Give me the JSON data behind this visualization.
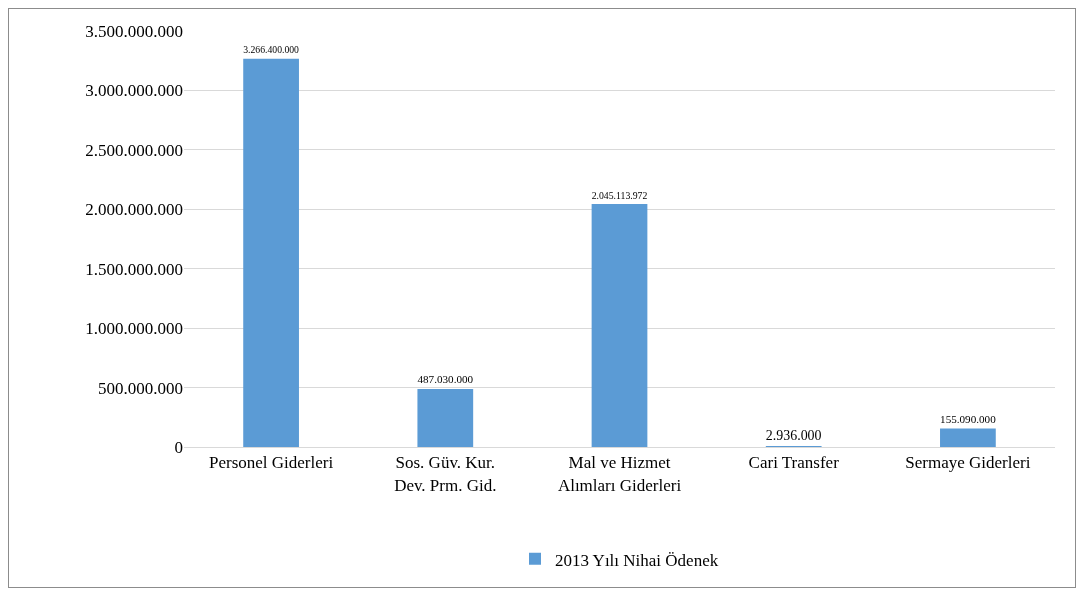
{
  "chart_data": {
    "type": "bar",
    "categories": [
      "Personel Giderleri",
      "Sos. Güv. Kur. Dev. Prm. Gid.",
      "Mal ve Hizmet Alımları Giderleri",
      "Cari Transfer",
      "Sermaye Giderleri"
    ],
    "series": [
      {
        "name": "2013 Yılı Nihai Ödenek",
        "color": "#5b9bd5",
        "values": [
          3266400000,
          487030000,
          2045113972,
          2936000,
          155090000
        ],
        "value_labels": [
          "3.266.400.000",
          "487.030.000",
          "2.045.113.972",
          "2.936.000",
          "155.090.000"
        ]
      }
    ],
    "ylim": [
      0,
      3500000000
    ],
    "yticks": [
      0,
      {
        "value": 500000000,
        "label": "500.000.000"
      },
      {
        "value": 1000000000,
        "label": "1.000.000.000"
      },
      {
        "value": 1500000000,
        "label": "1.500.000.000"
      },
      {
        "value": 2000000000,
        "label": "2.000.000.000"
      },
      {
        "value": 2500000000,
        "label": "2.500.000.000"
      },
      {
        "value": 3000000000,
        "label": "3.000.000.000"
      },
      {
        "value": 3500000000,
        "label": "3.500.000.000"
      }
    ],
    "grid": "y",
    "legend": "bottom"
  }
}
